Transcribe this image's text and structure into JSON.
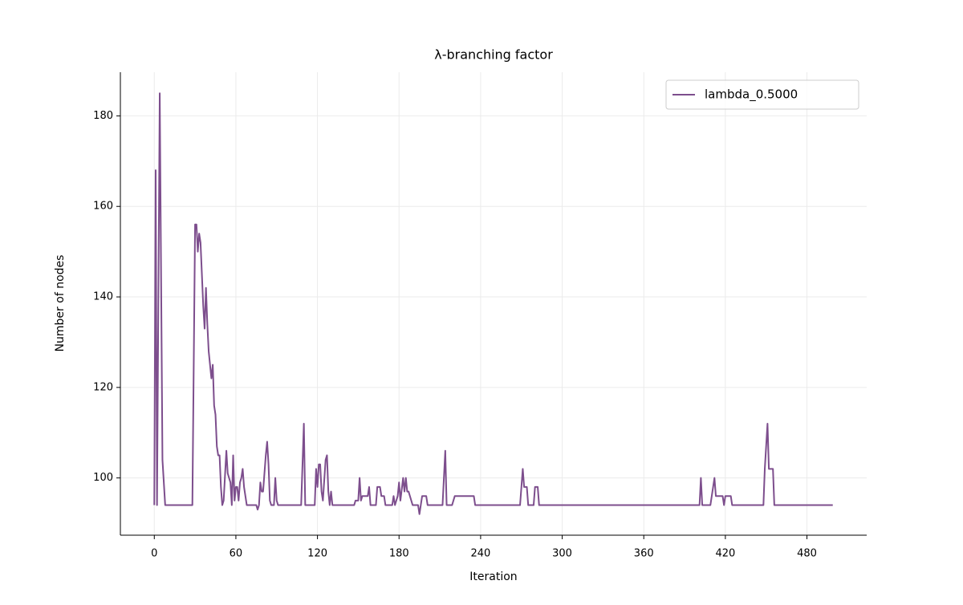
{
  "chart_data": {
    "type": "line",
    "title": "λ-branching factor",
    "x_label": "Iteration",
    "y_label": "Number of nodes",
    "x": [
      0,
      1,
      2,
      4,
      6,
      8,
      28,
      30,
      31,
      32,
      33,
      34,
      36,
      37,
      38,
      39,
      40,
      42,
      43,
      44,
      45,
      46,
      47,
      48,
      49,
      50,
      51,
      53,
      54,
      56,
      57,
      58,
      59,
      60,
      61,
      62,
      63,
      64,
      65,
      66,
      67,
      68,
      75,
      76,
      77,
      78,
      79,
      80,
      82,
      83,
      84,
      85,
      86,
      88,
      89,
      90,
      91,
      108,
      110,
      111,
      118,
      119,
      120,
      121,
      122,
      123,
      124,
      126,
      127,
      128,
      129,
      130,
      131,
      147,
      148,
      150,
      151,
      152,
      153,
      157,
      158,
      159,
      163,
      164,
      166,
      167,
      169,
      170,
      175,
      176,
      177,
      179,
      180,
      181,
      183,
      184,
      185,
      186,
      187,
      190,
      194,
      195,
      197,
      200,
      201,
      212,
      214,
      215,
      219,
      221,
      235,
      236,
      269,
      270,
      271,
      272,
      274,
      275,
      279,
      280,
      282,
      283,
      401,
      402,
      403,
      409,
      410,
      412,
      413,
      418,
      419,
      420,
      424,
      425,
      448,
      449,
      451,
      452,
      455,
      456,
      499
    ],
    "series": [
      {
        "name": "lambda_0.5000",
        "color": "#7d4e8d",
        "values": [
          94,
          168,
          94,
          185,
          104,
          94,
          94,
          156,
          156,
          150,
          154,
          152,
          138,
          133,
          142,
          134,
          128,
          122,
          125,
          116,
          114,
          107,
          105,
          105,
          98,
          94,
          95,
          106,
          101,
          99,
          94,
          105,
          95,
          98,
          98,
          95,
          99,
          100,
          102,
          98,
          96,
          94,
          94,
          93,
          94,
          99,
          97,
          97,
          105,
          108,
          103,
          95,
          94,
          94,
          100,
          95,
          94,
          94,
          112,
          94,
          94,
          102,
          98,
          103,
          103,
          97,
          95,
          104,
          105,
          97,
          94,
          97,
          94,
          94,
          95,
          95,
          100,
          95,
          96,
          96,
          98,
          94,
          94,
          98,
          98,
          96,
          96,
          94,
          94,
          96,
          94,
          96,
          99,
          95,
          100,
          97,
          100,
          97,
          97,
          94,
          94,
          92,
          96,
          96,
          94,
          94,
          106,
          94,
          94,
          96,
          96,
          94,
          94,
          98,
          102,
          98,
          98,
          94,
          94,
          98,
          98,
          94,
          94,
          100,
          94,
          94,
          96,
          100,
          96,
          96,
          94,
          96,
          96,
          94,
          94,
          102,
          112,
          102,
          102,
          94,
          94
        ]
      }
    ],
    "xlim": [
      -24.95,
      523.95
    ],
    "ylim": [
      87.35,
      189.65
    ],
    "xticks": [
      0,
      60,
      120,
      180,
      240,
      300,
      360,
      420,
      480
    ],
    "yticks": [
      100,
      120,
      140,
      160,
      180
    ],
    "grid": true,
    "legend": "upper right"
  }
}
